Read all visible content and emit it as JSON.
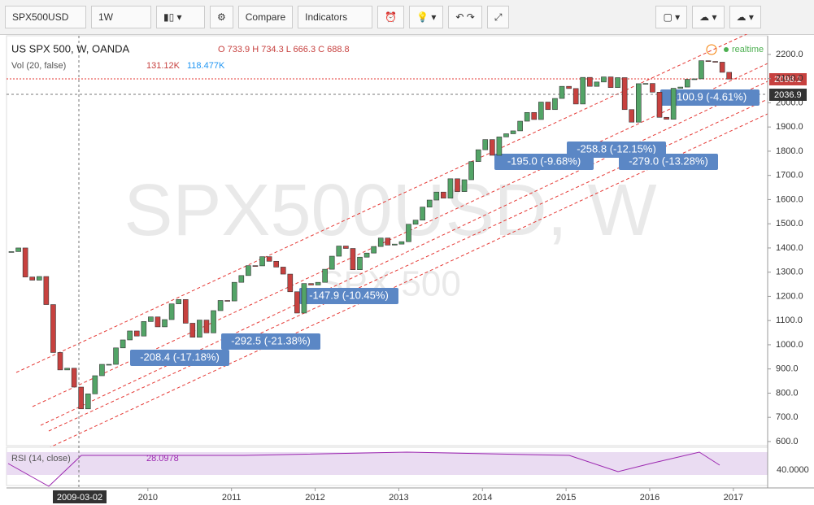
{
  "toolbar": {
    "symbol": "SPX500USD",
    "interval": "1W",
    "compare": "Compare",
    "indicators": "Indicators"
  },
  "legend": {
    "title": "US SPX 500, W, OANDA",
    "ohlc": "O 733.9 H 734.3 L 666.3 C 688.8",
    "volume_label": "Vol (20, false)",
    "volume_values": "131.12K",
    "volume_ma": "118.477K",
    "realtime": "realtime"
  },
  "watermark": {
    "main": "SPX500USD, W",
    "sub": "SPX 500"
  },
  "rsi": {
    "label": "RSI (14, close)",
    "value": "28.0978",
    "axis_label": "40.0000"
  },
  "crosshair": {
    "date": "2009-03-02",
    "price": "2036.9"
  },
  "last_price": "2098.1",
  "measurements": [
    "-208.4 (-17.18%)",
    "-292.5 (-21.38%)",
    "-147.9 (-10.45%)",
    "-195.0 (-9.68%)",
    "-258.8 (-12.15%)",
    "-279.0 (-13.28%)",
    "-100.9 (-4.61%)"
  ],
  "chart_data": {
    "type": "candlestick",
    "up_color": "#53a467",
    "down_color": "#c7413f",
    "values": [
      1385,
      1400,
      1280,
      1267,
      1282,
      1166,
      968,
      896,
      903,
      825,
      735,
      797,
      872,
      919,
      919,
      987,
      1020,
      1057,
      1036,
      1096,
      1115,
      1074,
      1104,
      1169,
      1187,
      1089,
      1031,
      1102,
      1049,
      1141,
      1183,
      1181,
      1258,
      1286,
      1327,
      1326,
      1364,
      1345,
      1321,
      1292,
      1219,
      1131,
      1253,
      1247,
      1258,
      1312,
      1366,
      1408,
      1398,
      1310,
      1362,
      1379,
      1406,
      1441,
      1412,
      1416,
      1426,
      1498,
      1515,
      1569,
      1598,
      1631,
      1606,
      1686,
      1633,
      1682,
      1757,
      1806,
      1848,
      1783,
      1859,
      1872,
      1884,
      1924,
      1960,
      1931,
      2003,
      1972,
      2018,
      2068,
      2059,
      1995,
      2105,
      2068,
      2086,
      2107,
      2063,
      2104,
      1972,
      1920,
      2079,
      2080,
      2044,
      1940,
      1932,
      2060,
      2065,
      2097,
      2099,
      2174,
      2171,
      2168,
      2126,
      2098
    ],
    "ylim": [
      583,
      2277
    ],
    "yticks": [
      {
        "value": 600,
        "label": "600.0"
      },
      {
        "value": 700,
        "label": "700.0"
      },
      {
        "value": 800,
        "label": "800.0"
      },
      {
        "value": 900,
        "label": "900.0"
      },
      {
        "value": 1000,
        "label": "1000.0"
      },
      {
        "value": 1100,
        "label": "1100.0"
      },
      {
        "value": 1200,
        "label": "1200.0"
      },
      {
        "value": 1300,
        "label": "1300.0"
      },
      {
        "value": 1400,
        "label": "1400.0"
      },
      {
        "value": 1500,
        "label": "1500.0"
      },
      {
        "value": 1600,
        "label": "1600.0"
      },
      {
        "value": 1700,
        "label": "1700.0"
      },
      {
        "value": 1800,
        "label": "1800.0"
      },
      {
        "value": 1900,
        "label": "1900.0"
      },
      {
        "value": 2000,
        "label": "2000.0"
      },
      {
        "value": 2100,
        "label": "2100.0"
      },
      {
        "value": 2200,
        "label": "2200.0"
      }
    ],
    "xlim": [
      2008.31,
      2017.41
    ],
    "xticks": [
      2010,
      2011,
      2012,
      2013,
      2014,
      2015,
      2016,
      2017
    ]
  }
}
